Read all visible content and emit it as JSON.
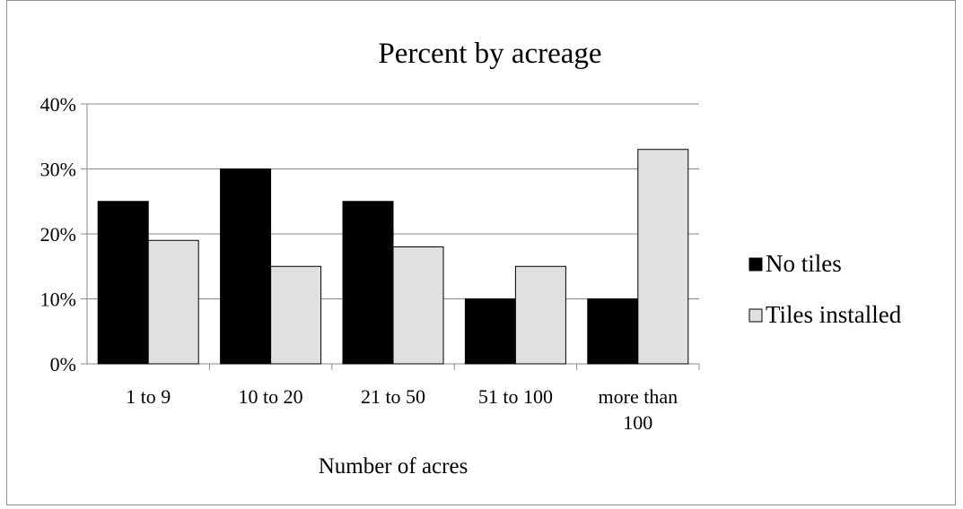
{
  "chart_data": {
    "type": "bar",
    "title": "Percent by acreage",
    "xlabel": "Number of acres",
    "ylabel": "",
    "categories": [
      [
        "1 to 9"
      ],
      [
        "10 to 20"
      ],
      [
        "21 to 50"
      ],
      [
        "51 to 100"
      ],
      [
        "more than",
        "100"
      ]
    ],
    "series": [
      {
        "name": "No tiles",
        "color": "#000000",
        "values": [
          0.25,
          0.3,
          0.25,
          0.1,
          0.1
        ]
      },
      {
        "name": "Tiles installed",
        "color": "#e0e0e0",
        "values": [
          0.19,
          0.15,
          0.18,
          0.15,
          0.33
        ]
      }
    ],
    "ylim": [
      0,
      0.4
    ],
    "yticks": [
      0,
      0.1,
      0.2,
      0.3,
      0.4
    ],
    "ytick_labels": [
      "0%",
      "10%",
      "20%",
      "30%",
      "40%"
    ],
    "grid": true,
    "legend_position": "right"
  }
}
